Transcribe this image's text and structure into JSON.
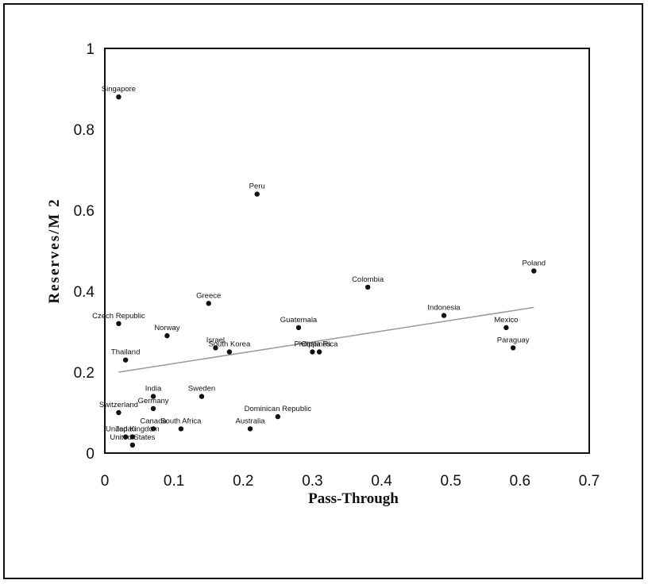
{
  "chart_data": {
    "type": "scatter",
    "title": "",
    "xlabel": "Pass-Through",
    "ylabel": "Reserves/M 2",
    "xlim": [
      0,
      0.7
    ],
    "ylim": [
      0,
      1
    ],
    "xticks": [
      "0",
      "0.1",
      "0.2",
      "0.3",
      "0.4",
      "0.5",
      "0.6",
      "0.7"
    ],
    "yticks": [
      "0",
      "0.2",
      "0.4",
      "0.6",
      "0.8",
      "1"
    ],
    "grid": false,
    "legend": "none",
    "point_color": "#111111",
    "trendline": {
      "x": [
        0.02,
        0.62
      ],
      "y": [
        0.2,
        0.36
      ],
      "color": "#999999"
    },
    "points": [
      {
        "label": "Singapore",
        "x": 0.02,
        "y": 0.88
      },
      {
        "label": "Peru",
        "x": 0.22,
        "y": 0.64
      },
      {
        "label": "Poland",
        "x": 0.62,
        "y": 0.45
      },
      {
        "label": "Colombia",
        "x": 0.38,
        "y": 0.41
      },
      {
        "label": "Greece",
        "x": 0.15,
        "y": 0.37
      },
      {
        "label": "Indonesia",
        "x": 0.49,
        "y": 0.34
      },
      {
        "label": "Mexico",
        "x": 0.58,
        "y": 0.31
      },
      {
        "label": "Czech Republic",
        "x": 0.02,
        "y": 0.32
      },
      {
        "label": "Guatemala",
        "x": 0.28,
        "y": 0.31
      },
      {
        "label": "Norway",
        "x": 0.09,
        "y": 0.29
      },
      {
        "label": "Israel",
        "x": 0.16,
        "y": 0.26
      },
      {
        "label": "Paraguay",
        "x": 0.59,
        "y": 0.26
      },
      {
        "label": "South Korea",
        "x": 0.18,
        "y": 0.25
      },
      {
        "label": "Philippines",
        "x": 0.3,
        "y": 0.25
      },
      {
        "label": "Costa Rica",
        "x": 0.31,
        "y": 0.25
      },
      {
        "label": "Thailand",
        "x": 0.03,
        "y": 0.23
      },
      {
        "label": "Sweden",
        "x": 0.14,
        "y": 0.14
      },
      {
        "label": "India",
        "x": 0.07,
        "y": 0.14
      },
      {
        "label": "Germany",
        "x": 0.07,
        "y": 0.11
      },
      {
        "label": "Switzerland",
        "x": 0.02,
        "y": 0.1
      },
      {
        "label": "Dominican Republic",
        "x": 0.25,
        "y": 0.09
      },
      {
        "label": "Australia",
        "x": 0.21,
        "y": 0.06
      },
      {
        "label": "South Africa",
        "x": 0.11,
        "y": 0.06
      },
      {
        "label": "Canada",
        "x": 0.07,
        "y": 0.06
      },
      {
        "label": "Japan",
        "x": 0.03,
        "y": 0.04
      },
      {
        "label": "United Kingdom",
        "x": 0.04,
        "y": 0.04
      },
      {
        "label": "United States",
        "x": 0.04,
        "y": 0.02
      }
    ]
  }
}
